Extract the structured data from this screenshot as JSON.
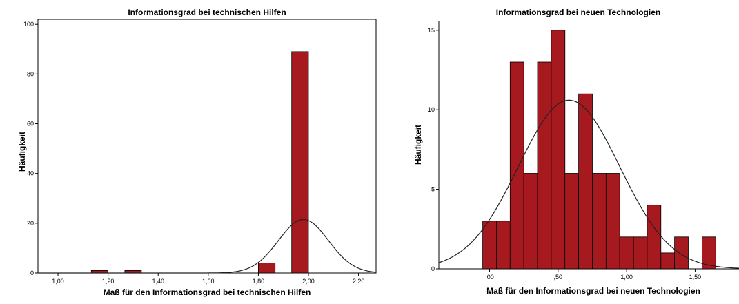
{
  "chart_data": [
    {
      "type": "bar",
      "title": "Informationsgrad bei technischen Hilfen",
      "xlabel": "Maß für den Informationsgrad bei technischen Hilfen",
      "ylabel": "Häufigkeit",
      "xlim": [
        0.92,
        2.27
      ],
      "ylim": [
        0,
        102
      ],
      "x_ticks": [
        1.0,
        1.2,
        1.4,
        1.6,
        1.8,
        2.0,
        2.2
      ],
      "x_tick_labels": [
        "1,00",
        "1,20",
        "1,40",
        "1,60",
        "1,80",
        "2,00",
        "2,20"
      ],
      "y_ticks": [
        0,
        20,
        40,
        60,
        80,
        100
      ],
      "y_tick_labels": [
        "0",
        "20",
        "40",
        "60",
        "80",
        "100"
      ],
      "bin_width": 0.067,
      "bins": [
        {
          "x0": 1.133,
          "x1": 1.2,
          "value": 1
        },
        {
          "x0": 1.267,
          "x1": 1.333,
          "value": 1
        },
        {
          "x0": 1.8,
          "x1": 1.867,
          "value": 4
        },
        {
          "x0": 1.933,
          "x1": 2.0,
          "value": 89
        }
      ],
      "normal_curve": {
        "mean": 1.98,
        "sd": 0.1,
        "peak": 21.5
      },
      "bar_color": "#a5191f",
      "grid": false
    },
    {
      "type": "bar",
      "title": "Informationsgrad bei neuen Technologien",
      "xlabel": "Maß für den Informationsgrad bei neuen Technologien",
      "ylabel": "Häufigkeit",
      "xlim": [
        -0.37,
        1.82
      ],
      "ylim": [
        0,
        15.6
      ],
      "x_ticks": [
        0.0,
        0.5,
        1.0,
        1.5
      ],
      "x_tick_labels": [
        ",00",
        ",50",
        "1,00",
        "1,50"
      ],
      "y_ticks": [
        0,
        5,
        10,
        15
      ],
      "y_tick_labels": [
        "0",
        "5",
        "10",
        "15"
      ],
      "bin_width": 0.1,
      "bins": [
        {
          "x0": -0.05,
          "x1": 0.05,
          "value": 3
        },
        {
          "x0": 0.05,
          "x1": 0.15,
          "value": 3
        },
        {
          "x0": 0.15,
          "x1": 0.25,
          "value": 13
        },
        {
          "x0": 0.25,
          "x1": 0.35,
          "value": 6
        },
        {
          "x0": 0.35,
          "x1": 0.45,
          "value": 13
        },
        {
          "x0": 0.45,
          "x1": 0.55,
          "value": 15
        },
        {
          "x0": 0.55,
          "x1": 0.65,
          "value": 6
        },
        {
          "x0": 0.65,
          "x1": 0.75,
          "value": 11
        },
        {
          "x0": 0.75,
          "x1": 0.85,
          "value": 6
        },
        {
          "x0": 0.85,
          "x1": 0.95,
          "value": 6
        },
        {
          "x0": 0.95,
          "x1": 1.05,
          "value": 2
        },
        {
          "x0": 1.05,
          "x1": 1.15,
          "value": 2
        },
        {
          "x0": 1.15,
          "x1": 1.25,
          "value": 4
        },
        {
          "x0": 1.25,
          "x1": 1.35,
          "value": 1
        },
        {
          "x0": 1.35,
          "x1": 1.45,
          "value": 2
        },
        {
          "x0": 1.55,
          "x1": 1.65,
          "value": 2
        }
      ],
      "normal_curve": {
        "mean": 0.58,
        "sd": 0.37,
        "peak": 10.6
      },
      "bar_color": "#a5191f",
      "grid": false
    }
  ]
}
